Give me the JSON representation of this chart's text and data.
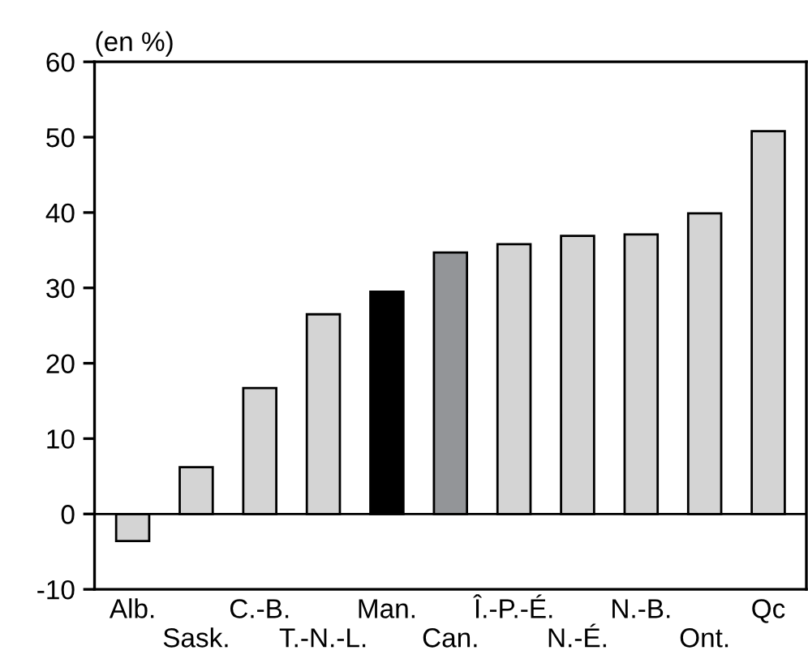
{
  "chart_data": {
    "type": "bar",
    "ylabel": "(en %)",
    "categories": [
      "Alb.",
      "Sask.",
      "C.-B.",
      "T.-N.-L.",
      "Man.",
      "Can.",
      "Î.-P.-É.",
      "N.-É.",
      "N.-B.",
      "Ont.",
      "Qc"
    ],
    "values": [
      -3.6,
      6.2,
      16.7,
      26.5,
      29.5,
      34.7,
      35.8,
      36.9,
      37.1,
      39.9,
      50.8
    ],
    "colors": [
      "#d4d4d4",
      "#d4d4d4",
      "#d4d4d4",
      "#d4d4d4",
      "#000000",
      "#939598",
      "#d4d4d4",
      "#d4d4d4",
      "#d4d4d4",
      "#d4d4d4",
      "#d4d4d4"
    ],
    "ylim": [
      -10,
      60
    ],
    "yticks": [
      -10,
      0,
      10,
      20,
      30,
      40,
      50,
      60
    ],
    "grid": false,
    "ref_lines": [
      {
        "axis": "y",
        "value": 0,
        "color": "#000000"
      }
    ]
  }
}
